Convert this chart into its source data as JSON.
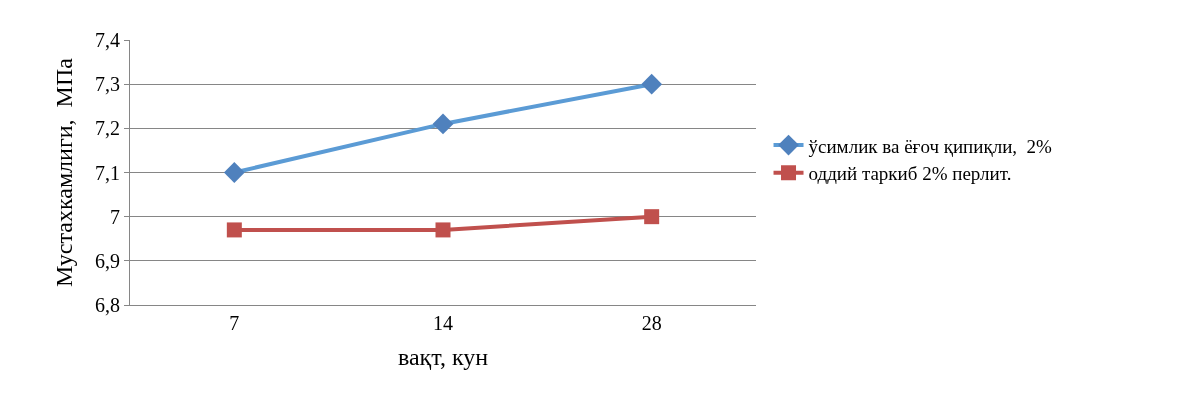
{
  "chart_data": {
    "type": "line",
    "xlabel": "вақт, кун",
    "ylabel": "Мустахкамлиги,  МПа",
    "categories": [
      "7",
      "14",
      "28"
    ],
    "series": [
      {
        "name": "ўсимлик ва ёғоч қипиқли,  2%",
        "color": "#4f81bd",
        "marker": "diamond",
        "values": [
          7.1,
          7.21,
          7.3
        ]
      },
      {
        "name": "оддий таркиб 2% перлит.",
        "color": "#c0504d",
        "marker": "square",
        "values": [
          6.97,
          6.97,
          7.0
        ]
      }
    ],
    "ylim": [
      6.8,
      7.4
    ],
    "yticks": [
      {
        "value": 6.8,
        "label": "6,8"
      },
      {
        "value": 6.9,
        "label": "6,9"
      },
      {
        "value": 7.0,
        "label": "7"
      },
      {
        "value": 7.1,
        "label": "7,1"
      },
      {
        "value": 7.2,
        "label": "7,2"
      },
      {
        "value": 7.3,
        "label": "7,3"
      },
      {
        "value": 7.4,
        "label": "7,4"
      }
    ],
    "grid": "y",
    "legend": "right"
  }
}
